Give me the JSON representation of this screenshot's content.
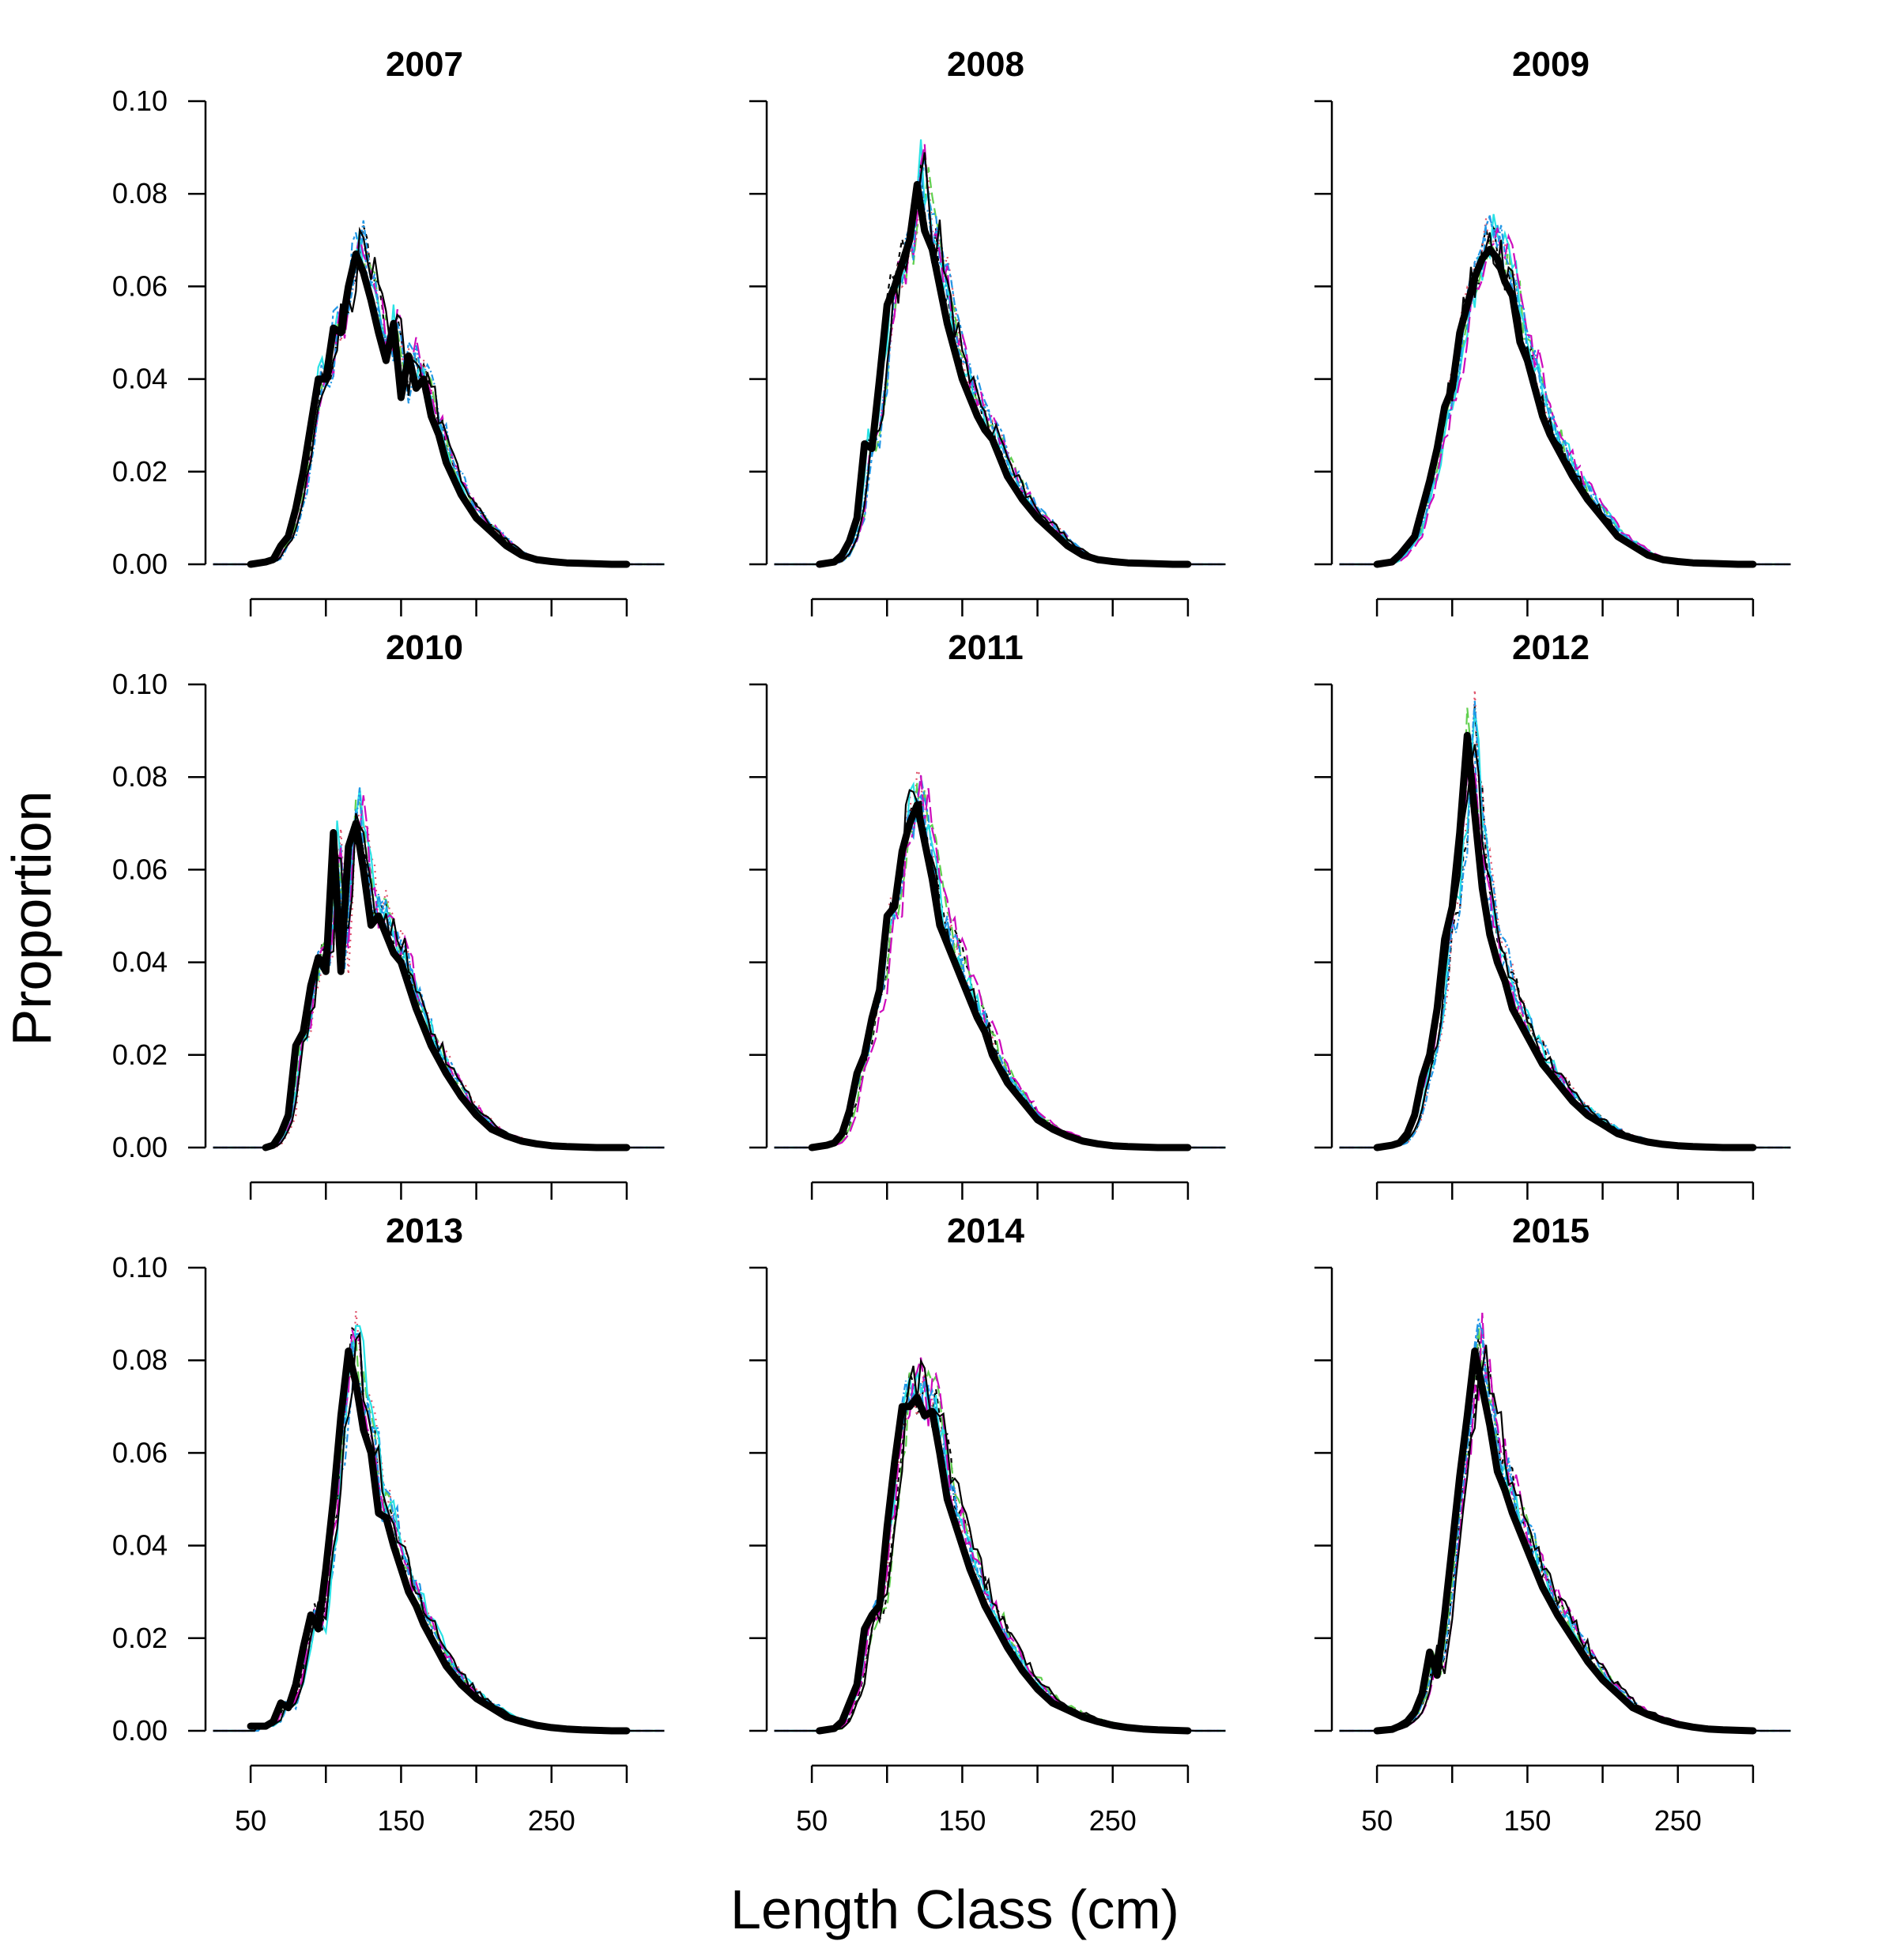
{
  "chart_data": {
    "type": "line",
    "xlabel": "Length Class (cm)",
    "ylabel": "Proportion",
    "xlim": [
      20,
      330
    ],
    "ylim": [
      0,
      0.1
    ],
    "x_ticks": [
      50,
      100,
      150,
      200,
      250,
      300
    ],
    "x_tick_labels": [
      "50",
      "150",
      "250"
    ],
    "y_ticks": [
      "0.00",
      "0.02",
      "0.04",
      "0.06",
      "0.08",
      "0.10"
    ],
    "overlay_colors": [
      "#000000",
      "#DF536B",
      "#61D04F",
      "#2297E6",
      "#28E2E5",
      "#CD0BBC",
      "#2297E6",
      "#000000"
    ],
    "panels": [
      {
        "title": "2007",
        "x": [
          50,
          60,
          65,
          70,
          75,
          80,
          85,
          90,
          95,
          100,
          105,
          110,
          115,
          120,
          125,
          130,
          135,
          140,
          145,
          150,
          155,
          160,
          165,
          170,
          175,
          180,
          190,
          200,
          210,
          220,
          230,
          240,
          250,
          260,
          270,
          280,
          290,
          300
        ],
        "y": [
          0.0,
          0.0005,
          0.001,
          0.004,
          0.006,
          0.012,
          0.02,
          0.03,
          0.04,
          0.04,
          0.051,
          0.05,
          0.06,
          0.067,
          0.063,
          0.057,
          0.05,
          0.044,
          0.052,
          0.036,
          0.045,
          0.038,
          0.04,
          0.032,
          0.028,
          0.022,
          0.015,
          0.01,
          0.007,
          0.004,
          0.002,
          0.001,
          0.0006,
          0.0003,
          0.0002,
          0.0001,
          0.0,
          0.0
        ]
      },
      {
        "title": "2008",
        "x": [
          55,
          65,
          70,
          75,
          80,
          85,
          90,
          95,
          100,
          105,
          110,
          115,
          120,
          125,
          130,
          135,
          140,
          145,
          150,
          155,
          160,
          165,
          170,
          175,
          180,
          190,
          200,
          210,
          220,
          230,
          240,
          250,
          260,
          270,
          280,
          290,
          300
        ],
        "y": [
          0.0,
          0.0005,
          0.002,
          0.005,
          0.01,
          0.026,
          0.025,
          0.04,
          0.056,
          0.06,
          0.065,
          0.07,
          0.082,
          0.072,
          0.068,
          0.06,
          0.052,
          0.046,
          0.04,
          0.036,
          0.032,
          0.029,
          0.027,
          0.023,
          0.019,
          0.014,
          0.01,
          0.007,
          0.004,
          0.002,
          0.001,
          0.0006,
          0.0003,
          0.0002,
          0.0001,
          0.0,
          0.0
        ]
      },
      {
        "title": "2009",
        "x": [
          50,
          60,
          65,
          70,
          75,
          80,
          85,
          90,
          95,
          100,
          105,
          110,
          115,
          120,
          125,
          130,
          135,
          140,
          145,
          150,
          155,
          160,
          165,
          170,
          175,
          180,
          190,
          200,
          210,
          220,
          230,
          240,
          250,
          260,
          270,
          280,
          290,
          300
        ],
        "y": [
          0.0,
          0.0005,
          0.002,
          0.004,
          0.006,
          0.012,
          0.018,
          0.025,
          0.034,
          0.038,
          0.05,
          0.056,
          0.062,
          0.066,
          0.068,
          0.066,
          0.061,
          0.058,
          0.048,
          0.044,
          0.038,
          0.032,
          0.028,
          0.025,
          0.022,
          0.019,
          0.014,
          0.01,
          0.006,
          0.004,
          0.002,
          0.001,
          0.0006,
          0.0003,
          0.0002,
          0.0001,
          0.0,
          0.0
        ]
      },
      {
        "title": "2010",
        "x": [
          60,
          65,
          70,
          75,
          80,
          85,
          90,
          95,
          100,
          105,
          110,
          115,
          120,
          125,
          130,
          135,
          140,
          145,
          150,
          155,
          160,
          165,
          170,
          180,
          190,
          200,
          210,
          220,
          230,
          240,
          250,
          260,
          270,
          280,
          290,
          300
        ],
        "y": [
          0.0,
          0.0005,
          0.003,
          0.007,
          0.022,
          0.025,
          0.035,
          0.041,
          0.038,
          0.068,
          0.038,
          0.065,
          0.07,
          0.06,
          0.048,
          0.05,
          0.046,
          0.042,
          0.04,
          0.035,
          0.03,
          0.026,
          0.022,
          0.016,
          0.011,
          0.007,
          0.004,
          0.0025,
          0.0014,
          0.0008,
          0.0004,
          0.0002,
          0.0001,
          0.0,
          0.0,
          0.0
        ]
      },
      {
        "title": "2011",
        "x": [
          50,
          60,
          65,
          70,
          75,
          80,
          85,
          90,
          95,
          100,
          105,
          110,
          115,
          120,
          125,
          130,
          135,
          140,
          145,
          150,
          155,
          160,
          165,
          170,
          180,
          190,
          200,
          210,
          220,
          230,
          240,
          250,
          260,
          270,
          280,
          290,
          300
        ],
        "y": [
          0.0,
          0.0005,
          0.001,
          0.003,
          0.008,
          0.016,
          0.02,
          0.028,
          0.034,
          0.05,
          0.052,
          0.064,
          0.07,
          0.074,
          0.066,
          0.058,
          0.048,
          0.044,
          0.04,
          0.036,
          0.032,
          0.028,
          0.025,
          0.02,
          0.014,
          0.01,
          0.006,
          0.004,
          0.0025,
          0.0014,
          0.0008,
          0.0004,
          0.0002,
          0.0001,
          0.0,
          0.0,
          0.0
        ]
      },
      {
        "title": "2012",
        "x": [
          50,
          60,
          65,
          70,
          75,
          80,
          85,
          90,
          95,
          100,
          105,
          110,
          115,
          120,
          125,
          130,
          135,
          140,
          145,
          150,
          155,
          160,
          165,
          170,
          180,
          190,
          200,
          210,
          220,
          230,
          240,
          250,
          260,
          270,
          280,
          290,
          300
        ],
        "y": [
          0.0,
          0.0005,
          0.001,
          0.003,
          0.007,
          0.015,
          0.02,
          0.03,
          0.045,
          0.052,
          0.068,
          0.089,
          0.072,
          0.056,
          0.046,
          0.04,
          0.036,
          0.03,
          0.027,
          0.024,
          0.021,
          0.018,
          0.016,
          0.014,
          0.01,
          0.007,
          0.005,
          0.003,
          0.002,
          0.0012,
          0.0007,
          0.0004,
          0.0002,
          0.0001,
          0.0,
          0.0,
          0.0
        ]
      },
      {
        "title": "2013",
        "x": [
          50,
          55,
          60,
          65,
          70,
          75,
          80,
          85,
          90,
          95,
          100,
          105,
          110,
          115,
          120,
          125,
          130,
          135,
          140,
          145,
          150,
          155,
          160,
          165,
          170,
          175,
          180,
          190,
          200,
          210,
          220,
          230,
          240,
          250,
          260,
          270,
          280,
          290,
          300
        ],
        "y": [
          0.001,
          0.001,
          0.001,
          0.002,
          0.006,
          0.005,
          0.01,
          0.018,
          0.025,
          0.022,
          0.035,
          0.05,
          0.068,
          0.082,
          0.075,
          0.065,
          0.06,
          0.047,
          0.046,
          0.04,
          0.035,
          0.03,
          0.027,
          0.023,
          0.02,
          0.017,
          0.014,
          0.01,
          0.007,
          0.005,
          0.003,
          0.002,
          0.0012,
          0.0007,
          0.0004,
          0.0002,
          0.0001,
          0.0,
          0.0
        ]
      },
      {
        "title": "2014",
        "x": [
          55,
          65,
          70,
          75,
          80,
          85,
          90,
          95,
          100,
          105,
          110,
          115,
          120,
          125,
          130,
          135,
          140,
          145,
          150,
          155,
          160,
          165,
          170,
          175,
          180,
          190,
          200,
          210,
          220,
          230,
          240,
          250,
          260,
          270,
          280,
          290,
          300
        ],
        "y": [
          0.0,
          0.0005,
          0.002,
          0.006,
          0.01,
          0.022,
          0.025,
          0.027,
          0.044,
          0.058,
          0.07,
          0.07,
          0.072,
          0.068,
          0.069,
          0.06,
          0.05,
          0.045,
          0.04,
          0.035,
          0.031,
          0.027,
          0.024,
          0.021,
          0.018,
          0.013,
          0.009,
          0.006,
          0.0045,
          0.003,
          0.002,
          0.0012,
          0.0007,
          0.0004,
          0.0002,
          0.0001,
          0.0
        ]
      },
      {
        "title": "2015",
        "x": [
          50,
          60,
          65,
          70,
          75,
          80,
          85,
          90,
          95,
          100,
          105,
          110,
          115,
          120,
          125,
          130,
          135,
          140,
          145,
          150,
          155,
          160,
          165,
          170,
          180,
          190,
          200,
          210,
          220,
          230,
          240,
          250,
          260,
          270,
          280,
          290,
          300
        ],
        "y": [
          0.0,
          0.0003,
          0.001,
          0.002,
          0.004,
          0.008,
          0.017,
          0.012,
          0.025,
          0.04,
          0.055,
          0.068,
          0.082,
          0.074,
          0.066,
          0.056,
          0.052,
          0.047,
          0.043,
          0.039,
          0.035,
          0.031,
          0.028,
          0.025,
          0.02,
          0.015,
          0.011,
          0.008,
          0.005,
          0.0035,
          0.0023,
          0.0014,
          0.0008,
          0.0004,
          0.0002,
          0.0001,
          0.0
        ]
      }
    ]
  }
}
